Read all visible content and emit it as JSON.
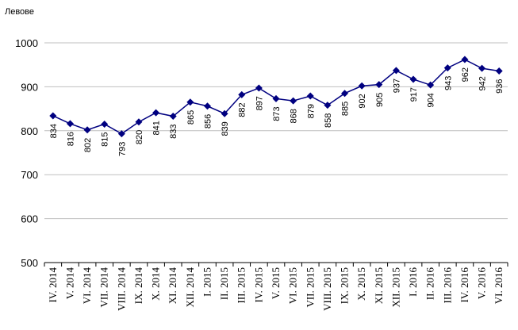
{
  "chart_data": {
    "type": "line",
    "ylabel": "Левове",
    "ylim": [
      500,
      1000
    ],
    "yticks": [
      500,
      600,
      700,
      800,
      900,
      1000
    ],
    "grid": "horizontal",
    "series_color": "#000080",
    "categories": [
      "IV. 2014",
      "V. 2014",
      "VI. 2014",
      "VII. 2014",
      "VIII. 2014",
      "IX. 2014",
      "X. 2014",
      "XI. 2014",
      "XII. 2014",
      "I. 2015",
      "II. 2015",
      "III. 2015",
      "IV. 2015",
      "V. 2015",
      "VI. 2015",
      "VII. 2015",
      "VIII. 2015",
      "IX. 2015",
      "X. 2015",
      "XI. 2015",
      "XII. 2015",
      "I. 2016",
      "II. 2016",
      "III. 2016",
      "IV. 2016",
      "V. 2016",
      "VI. 2016"
    ],
    "values": [
      834,
      816,
      802,
      815,
      793,
      820,
      841,
      833,
      865,
      856,
      839,
      882,
      897,
      873,
      868,
      879,
      858,
      885,
      902,
      905,
      937,
      917,
      904,
      943,
      962,
      942,
      936
    ]
  }
}
